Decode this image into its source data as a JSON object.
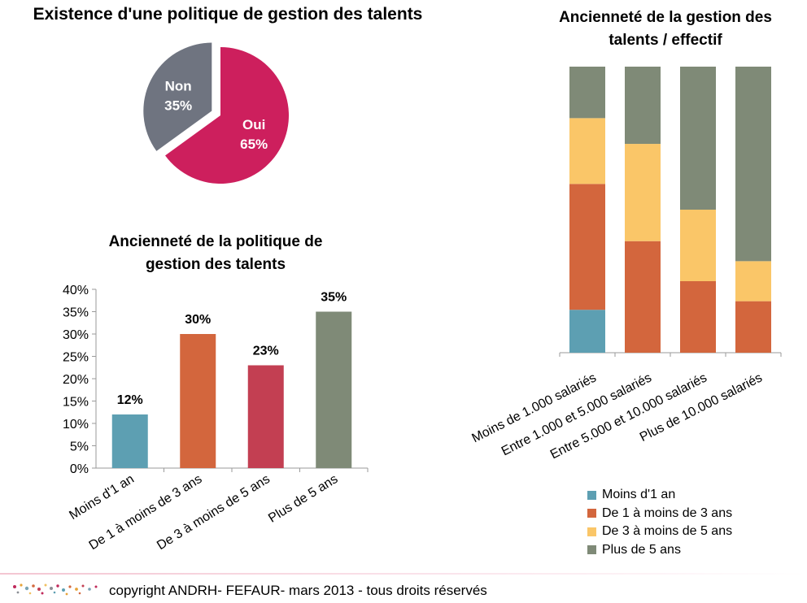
{
  "chart_data": [
    {
      "type": "pie",
      "title": "Existence d'une politique de gestion des talents",
      "slices": [
        {
          "label": "Oui",
          "value": 65,
          "display": "65%",
          "color": "#cd1f5d"
        },
        {
          "label": "Non",
          "value": 35,
          "display": "35%",
          "color": "#6f7480"
        }
      ]
    },
    {
      "type": "bar",
      "title": "Ancienneté de la politique de gestion des talents",
      "categories": [
        "Moins d'1 an",
        "De 1 à moins de 3 ans",
        "De 3 à moins de 5 ans",
        "Plus de 5 ans"
      ],
      "values": [
        12,
        30,
        23,
        35
      ],
      "value_labels": [
        "12%",
        "30%",
        "23%",
        "35%"
      ],
      "colors": [
        "#5d9fb2",
        "#d3663d",
        "#c33f52",
        "#7f8a77"
      ],
      "yticks": [
        "0%",
        "5%",
        "10%",
        "15%",
        "20%",
        "25%",
        "30%",
        "35%",
        "40%"
      ],
      "ylim": [
        0,
        40
      ]
    },
    {
      "type": "bar",
      "stacked": true,
      "title": "Ancienneté de la gestion des talents / effectif",
      "categories": [
        "Moins de 1.000 salariés",
        "Entre 1.000 et 5.000 salariés",
        "Entre 5.000 et 10.000 salariés",
        "Plus de 10.000 salariés"
      ],
      "series": [
        {
          "name": "Moins d'1 an",
          "color": "#5d9fb2",
          "values": [
            15,
            0,
            0,
            0
          ]
        },
        {
          "name": "De 1 à moins de 3 ans",
          "color": "#d3663d",
          "values": [
            44,
            39,
            25,
            18
          ]
        },
        {
          "name": "De 3 à moins de 5 ans",
          "color": "#fac668",
          "values": [
            23,
            34,
            25,
            14
          ]
        },
        {
          "name": "Plus de 5 ans",
          "color": "#7f8a77",
          "values": [
            18,
            27,
            50,
            68
          ]
        }
      ],
      "ylim": [
        0,
        100
      ],
      "legend": "bottom"
    }
  ],
  "footer": {
    "text": "copyright  ANDRH- FEFAUR- mars 2013 - tous droits réservés"
  }
}
